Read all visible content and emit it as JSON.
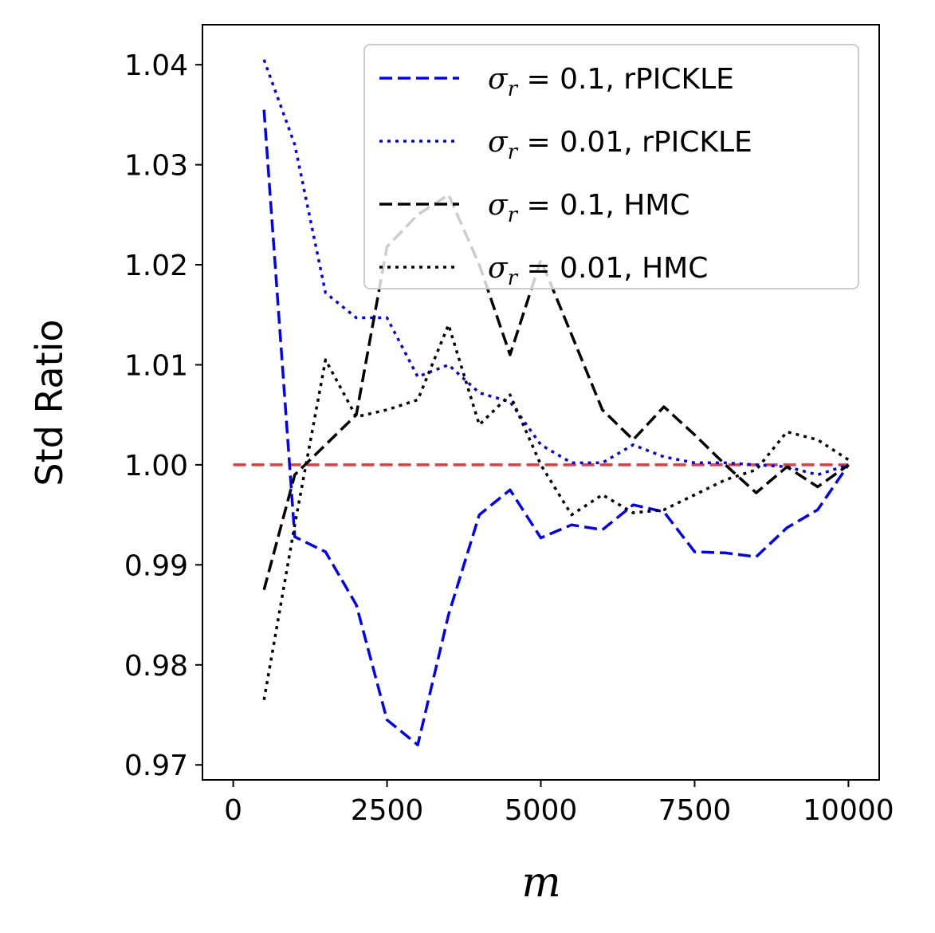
{
  "chart_data": {
    "type": "line",
    "title": "",
    "xlabel": "m",
    "ylabel": "Std Ratio",
    "xlim": [
      -500,
      10500
    ],
    "ylim": [
      0.9685,
      1.044
    ],
    "xticks": [
      0,
      2500,
      5000,
      7500,
      10000
    ],
    "xtick_labels": [
      "0",
      "2500",
      "5000",
      "7500",
      "10000"
    ],
    "yticks": [
      0.97,
      0.98,
      0.99,
      1.0,
      1.01,
      1.02,
      1.03,
      1.04
    ],
    "ytick_labels": [
      "0.97",
      "0.98",
      "0.99",
      "1.00",
      "1.01",
      "1.02",
      "1.03",
      "1.04"
    ],
    "grid": false,
    "legend_position": "top-right",
    "reference_line": {
      "y": 1.0,
      "x_range": [
        0,
        10000
      ],
      "color": "#ee2222",
      "style": "dashed"
    },
    "series": [
      {
        "name": "σ_r = 0.1, rPICKLE",
        "legend_math": "σ",
        "legend_sub": "r",
        "legend_rest": " = 0.1, rPICKLE",
        "color": "#0000ff",
        "style": "dashed",
        "x": [
          500,
          1000,
          1500,
          2000,
          2500,
          3000,
          3500,
          4000,
          4500,
          5000,
          5500,
          6000,
          6500,
          7000,
          7500,
          8000,
          8500,
          9000,
          9500,
          10000
        ],
        "values": [
          1.0355,
          0.9928,
          0.9913,
          0.986,
          0.9745,
          0.972,
          0.985,
          0.995,
          0.9975,
          0.9927,
          0.994,
          0.9935,
          0.996,
          0.9953,
          0.9913,
          0.9912,
          0.9908,
          0.9937,
          0.9955,
          1.0
        ]
      },
      {
        "name": "σ_r = 0.01, rPICKLE",
        "legend_math": "σ",
        "legend_sub": "r",
        "legend_rest": " = 0.01, rPICKLE",
        "color": "#0000ff",
        "style": "dotted",
        "x": [
          500,
          1000,
          1500,
          2000,
          2500,
          3000,
          3500,
          4000,
          4500,
          5000,
          5500,
          6000,
          6500,
          7000,
          7500,
          8000,
          8500,
          9000,
          9500,
          10000
        ],
        "values": [
          1.0405,
          1.032,
          1.0172,
          1.0147,
          1.0147,
          1.0088,
          1.01,
          1.0072,
          1.0063,
          1.002,
          1.0002,
          1.0002,
          1.002,
          1.0008,
          1.0002,
          1.0002,
          1.0,
          0.9998,
          0.999,
          1.0
        ]
      },
      {
        "name": "σ_r = 0.1, HMC",
        "legend_math": "σ",
        "legend_sub": "r",
        "legend_rest": " = 0.1, HMC",
        "color": "#000000",
        "style": "dashed",
        "x": [
          500,
          1000,
          1500,
          2000,
          2500,
          3000,
          3500,
          4000,
          4500,
          5000,
          5500,
          6000,
          6500,
          7000,
          7500,
          8000,
          8500,
          9000,
          9500,
          10000
        ],
        "values": [
          0.9875,
          0.999,
          1.002,
          1.005,
          1.0218,
          1.025,
          1.027,
          1.02,
          1.011,
          1.0205,
          1.013,
          1.0055,
          1.0025,
          1.0058,
          1.003,
          1.0,
          0.9972,
          0.9998,
          0.9978,
          1.0
        ]
      },
      {
        "name": "σ_r = 0.01, HMC",
        "legend_math": "σ",
        "legend_sub": "r",
        "legend_rest": " = 0.01, HMC",
        "color": "#000000",
        "style": "dotted",
        "x": [
          500,
          1000,
          1500,
          2000,
          2500,
          3000,
          3500,
          4000,
          4500,
          5000,
          5500,
          6000,
          6500,
          7000,
          7500,
          8000,
          8500,
          9000,
          9500,
          10000
        ],
        "values": [
          0.9765,
          0.994,
          1.0105,
          1.0048,
          1.0055,
          1.0065,
          1.014,
          1.004,
          1.007,
          1.0,
          0.995,
          0.997,
          0.9952,
          0.9955,
          0.997,
          0.9985,
          0.9995,
          1.0033,
          1.0025,
          1.0005
        ]
      }
    ]
  }
}
